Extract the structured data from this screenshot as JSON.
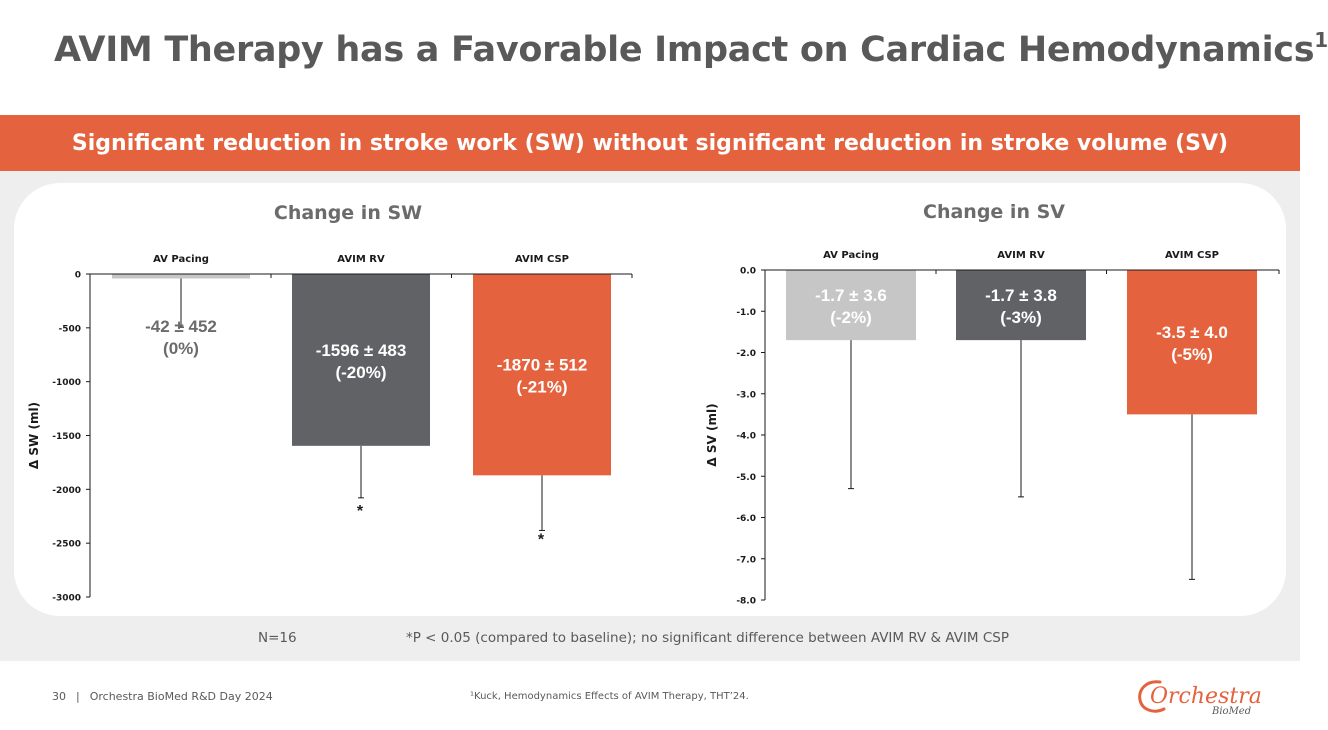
{
  "slide": {
    "title": "AVIM Therapy has a Favorable Impact on Cardiac Hemodynamics",
    "title_superscript": "1",
    "banner": "Significant reduction in stroke work (SW) without significant reduction in stroke volume (SV)",
    "n_label": "N=16",
    "p_note": "*P < 0.05 (compared to baseline); no significant difference between AVIM RV & AVIM CSP",
    "page_number": "30",
    "page_separator": "|",
    "footer_text": "Orchestra BioMed R&D Day 2024",
    "reference": "¹Kuck, Hemodynamics Effects of AVIM Therapy, THT’24.",
    "logo_text": "Orchestra",
    "logo_subtext": "BioMed",
    "colors": {
      "accent": "#e5623e",
      "light_grey_bar": "#c6c6c7",
      "dark_grey_bar": "#616266",
      "title_text": "#595959"
    }
  },
  "chart_data": [
    {
      "type": "bar",
      "title": "Change in SW",
      "ylabel": "Δ SW (ml)",
      "xlabel": "",
      "categories": [
        "AV Pacing",
        "AVIM RV",
        "AVIM CSP"
      ],
      "values": [
        -42,
        -1596,
        -1870
      ],
      "errors": [
        452,
        483,
        512
      ],
      "data_labels": [
        "-42 ± 452",
        "-1596 ± 483",
        "-1870 ± 512"
      ],
      "percent_labels": [
        "(0%)",
        "(-20%)",
        "(-21%)"
      ],
      "significance": [
        "",
        "*",
        "*"
      ],
      "ylim": [
        -3000,
        0
      ],
      "yticks": [
        0,
        -500,
        -1000,
        -1500,
        -2000,
        -2500,
        -3000
      ],
      "ytick_labels": [
        "0",
        "-500",
        "-1000",
        "-1500",
        "-2000",
        "-2500",
        "-3000"
      ],
      "category_axis": "top",
      "bar_colors": [
        "#c6c6c7",
        "#616266",
        "#e5623e"
      ]
    },
    {
      "type": "bar",
      "title": "Change in SV",
      "ylabel": "Δ SV (ml)",
      "xlabel": "",
      "categories": [
        "AV Pacing",
        "AVIM RV",
        "AVIM CSP"
      ],
      "values": [
        -1.7,
        -1.7,
        -3.5
      ],
      "errors": [
        3.6,
        3.8,
        4.0
      ],
      "data_labels": [
        "-1.7 ± 3.6",
        "-1.7 ± 3.8",
        "-3.5 ± 4.0"
      ],
      "percent_labels": [
        "(-2%)",
        "(-3%)",
        "(-5%)"
      ],
      "significance": [
        "",
        "",
        ""
      ],
      "ylim": [
        -8,
        0
      ],
      "yticks": [
        0,
        -1,
        -2,
        -3,
        -4,
        -5,
        -6,
        -7,
        -8
      ],
      "ytick_labels": [
        "0.0",
        "-1.0",
        "-2.0",
        "-3.0",
        "-4.0",
        "-5.0",
        "-6.0",
        "-7.0",
        "-8.0"
      ],
      "category_axis": "top",
      "bar_colors": [
        "#c6c6c7",
        "#616266",
        "#e5623e"
      ]
    }
  ]
}
